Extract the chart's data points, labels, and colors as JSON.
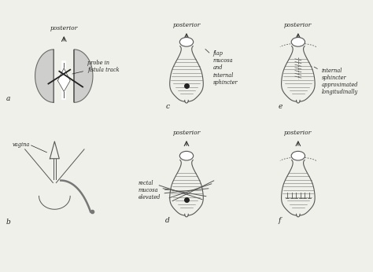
{
  "bg_color": "#f0f0eb",
  "line_color": "#555555",
  "dark_color": "#222222",
  "shading_color": "#bbbbbb",
  "title": "",
  "labels": {
    "a": "a",
    "b": "b",
    "c": "c",
    "d": "d",
    "e": "e",
    "f": "f"
  },
  "annotations": {
    "posterior_top_a": "posterior",
    "probe_label": "probe in\nfistula track",
    "vagina_label": "vagina",
    "posterior_c": "posterior",
    "flap_label": "flap\nmucosa\nand\ninternal\nsphincter",
    "posterior_d": "posterior",
    "rectal_label": "rectal\nmucosa\nelevated",
    "posterior_e": "posterior",
    "internal_label": "internal\nsphincter\napproximated\nlongitudinally",
    "posterior_f": "posterior"
  },
  "figsize": [
    4.74,
    3.46
  ],
  "dpi": 100
}
